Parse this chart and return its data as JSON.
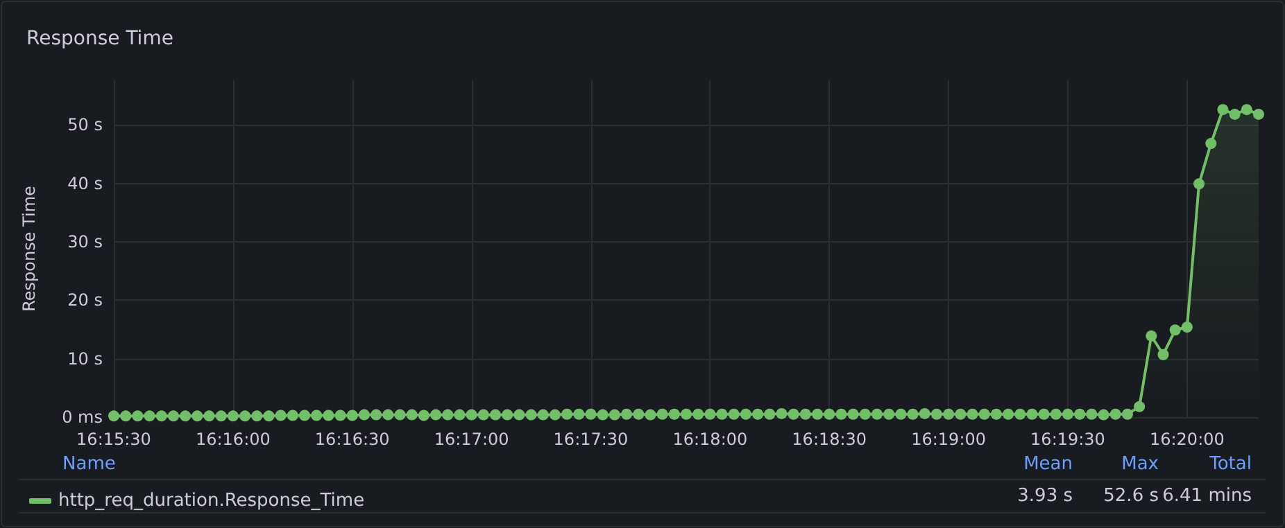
{
  "chart_data": {
    "type": "area",
    "title": "Response Time",
    "ylabel": "Response Time",
    "categories": [
      "16:15:30",
      null,
      null,
      null,
      null,
      null,
      null,
      null,
      null,
      null,
      "16:16:00",
      null,
      null,
      null,
      null,
      null,
      null,
      null,
      null,
      null,
      "16:16:30",
      null,
      null,
      null,
      null,
      null,
      null,
      null,
      null,
      null,
      "16:17:00",
      null,
      null,
      null,
      null,
      null,
      null,
      null,
      null,
      null,
      "16:17:30",
      null,
      null,
      null,
      null,
      null,
      null,
      null,
      null,
      null,
      "16:18:00",
      null,
      null,
      null,
      null,
      null,
      null,
      null,
      null,
      null,
      "16:18:30",
      null,
      null,
      null,
      null,
      null,
      null,
      null,
      null,
      null,
      "16:19:00",
      null,
      null,
      null,
      null,
      null,
      null,
      null,
      null,
      null,
      "16:19:30",
      null,
      null,
      null,
      null,
      null,
      null,
      null,
      null,
      null,
      "16:20:00",
      null,
      null,
      null,
      null,
      null,
      null
    ],
    "series": [
      {
        "name": "http_req_duration.Response_Time",
        "color": "#73bf69",
        "values": [
          0.2,
          0.2,
          0.2,
          0.2,
          0.2,
          0.2,
          0.2,
          0.2,
          0.2,
          0.2,
          0.2,
          0.2,
          0.2,
          0.2,
          0.3,
          0.3,
          0.3,
          0.3,
          0.3,
          0.3,
          0.3,
          0.4,
          0.4,
          0.4,
          0.4,
          0.4,
          0.3,
          0.4,
          0.4,
          0.4,
          0.4,
          0.4,
          0.4,
          0.4,
          0.4,
          0.4,
          0.4,
          0.4,
          0.5,
          0.5,
          0.5,
          0.4,
          0.4,
          0.5,
          0.5,
          0.4,
          0.5,
          0.5,
          0.5,
          0.5,
          0.5,
          0.5,
          0.5,
          0.5,
          0.5,
          0.5,
          0.6,
          0.5,
          0.5,
          0.5,
          0.5,
          0.5,
          0.5,
          0.5,
          0.5,
          0.5,
          0.5,
          0.5,
          0.6,
          0.5,
          0.5,
          0.5,
          0.5,
          0.5,
          0.5,
          0.5,
          0.5,
          0.5,
          0.5,
          0.5,
          0.5,
          0.5,
          0.5,
          0.4,
          0.5,
          0.5,
          1.8,
          13.9,
          10.7,
          14.9,
          15.4,
          39.9,
          46.8,
          52.6,
          51.8,
          52.6,
          51.8
        ]
      }
    ],
    "ylim": [
      0,
      57.6
    ],
    "yticks": [
      {
        "value": 0,
        "label": "0 ms"
      },
      {
        "value": 10,
        "label": "10 s"
      },
      {
        "value": 20,
        "label": "20 s"
      },
      {
        "value": 30,
        "label": "30 s"
      },
      {
        "value": 40,
        "label": "40 s"
      },
      {
        "value": 50,
        "label": "50 s"
      }
    ],
    "grid": true,
    "marker": "circle",
    "line_style": "solid",
    "legend": "bottom",
    "annotations": [
      "Name",
      "Mean",
      "Max",
      "Total",
      "3.93 s",
      "52.6 s",
      "6.41 mins"
    ]
  }
}
